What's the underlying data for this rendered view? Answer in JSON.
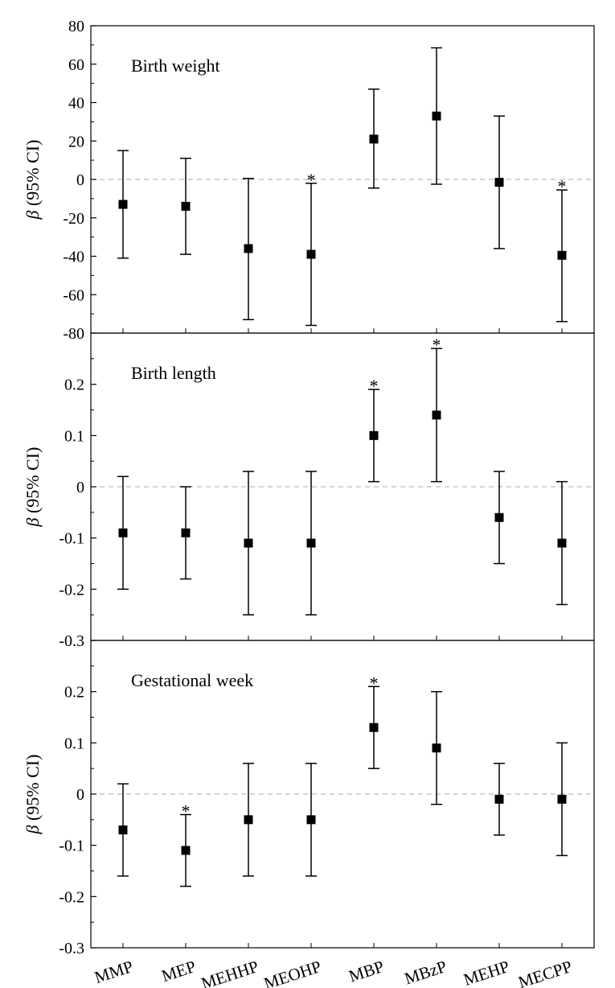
{
  "chart_data": {
    "type": "forest",
    "categories": [
      "MMP",
      "MEP",
      "MEHHP",
      "MEOHP",
      "MBP",
      "MBzP",
      "MEHP",
      "MECPP"
    ],
    "ylabel_symbol": "β",
    "ylabel_text": " (95% CI)",
    "panels": [
      {
        "title": "Birth weight",
        "ylim": [
          -80,
          80
        ],
        "yticks": [
          80,
          60,
          40,
          20,
          0,
          -20,
          -40,
          -60,
          -80
        ],
        "ytick_labels": [
          "80",
          "60",
          "40",
          "20",
          "0",
          "-20",
          "-40",
          "-60",
          "-80"
        ],
        "points": [
          {
            "category": "MMP",
            "beta": -13,
            "lower": -41,
            "upper": 15,
            "significant": false
          },
          {
            "category": "MEP",
            "beta": -14,
            "lower": -39,
            "upper": 11,
            "significant": false
          },
          {
            "category": "MEHHP",
            "beta": -36,
            "lower": -73,
            "upper": 0.5,
            "significant": false
          },
          {
            "category": "MEOHP",
            "beta": -39,
            "lower": -76,
            "upper": -2,
            "significant": true
          },
          {
            "category": "MBP",
            "beta": 21,
            "lower": -4.5,
            "upper": 47,
            "significant": false
          },
          {
            "category": "MBzP",
            "beta": 33,
            "lower": -2.5,
            "upper": 68.5,
            "significant": false
          },
          {
            "category": "MEHP",
            "beta": -1.5,
            "lower": -36,
            "upper": 33,
            "significant": false
          },
          {
            "category": "MECPP",
            "beta": -39.5,
            "lower": -74,
            "upper": -5.5,
            "significant": true
          }
        ]
      },
      {
        "title": "Birth length",
        "ylim": [
          -0.3,
          0.3
        ],
        "yticks": [
          0.2,
          0.1,
          0,
          -0.1,
          -0.2,
          -0.3
        ],
        "ytick_labels": [
          "0.2",
          "0.1",
          "0",
          "-0.1",
          "-0.2",
          "-0.3"
        ],
        "points": [
          {
            "category": "MMP",
            "beta": -0.09,
            "lower": -0.2,
            "upper": 0.02,
            "significant": false
          },
          {
            "category": "MEP",
            "beta": -0.09,
            "lower": -0.18,
            "upper": 0.0,
            "significant": false
          },
          {
            "category": "MEHHP",
            "beta": -0.11,
            "lower": -0.25,
            "upper": 0.03,
            "significant": false
          },
          {
            "category": "MEOHP",
            "beta": -0.11,
            "lower": -0.25,
            "upper": 0.03,
            "significant": false
          },
          {
            "category": "MBP",
            "beta": 0.1,
            "lower": 0.01,
            "upper": 0.19,
            "significant": true
          },
          {
            "category": "MBzP",
            "beta": 0.14,
            "lower": 0.01,
            "upper": 0.27,
            "significant": true
          },
          {
            "category": "MEHP",
            "beta": -0.06,
            "lower": -0.15,
            "upper": 0.03,
            "significant": false
          },
          {
            "category": "MECPP",
            "beta": -0.11,
            "lower": -0.23,
            "upper": 0.01,
            "significant": false
          }
        ]
      },
      {
        "title": "Gestational week",
        "ylim": [
          -0.3,
          0.3
        ],
        "yticks": [
          0.2,
          0.1,
          0,
          -0.1,
          -0.2,
          -0.3
        ],
        "ytick_labels": [
          "0.2",
          "0.1",
          "0",
          "-0.1",
          "-0.2",
          "-0.3"
        ],
        "points": [
          {
            "category": "MMP",
            "beta": -0.07,
            "lower": -0.16,
            "upper": 0.02,
            "significant": false
          },
          {
            "category": "MEP",
            "beta": -0.11,
            "lower": -0.18,
            "upper": -0.04,
            "significant": true
          },
          {
            "category": "MEHHP",
            "beta": -0.05,
            "lower": -0.16,
            "upper": 0.06,
            "significant": false
          },
          {
            "category": "MEOHP",
            "beta": -0.05,
            "lower": -0.16,
            "upper": 0.06,
            "significant": false
          },
          {
            "category": "MBP",
            "beta": 0.13,
            "lower": 0.05,
            "upper": 0.21,
            "significant": true
          },
          {
            "category": "MBzP",
            "beta": 0.09,
            "lower": -0.02,
            "upper": 0.2,
            "significant": false
          },
          {
            "category": "MEHP",
            "beta": -0.01,
            "lower": -0.08,
            "upper": 0.06,
            "significant": false
          },
          {
            "category": "MECPP",
            "beta": -0.01,
            "lower": -0.12,
            "upper": 0.1,
            "significant": false
          }
        ]
      }
    ],
    "significance_marker": "*",
    "reference_line": 0
  }
}
